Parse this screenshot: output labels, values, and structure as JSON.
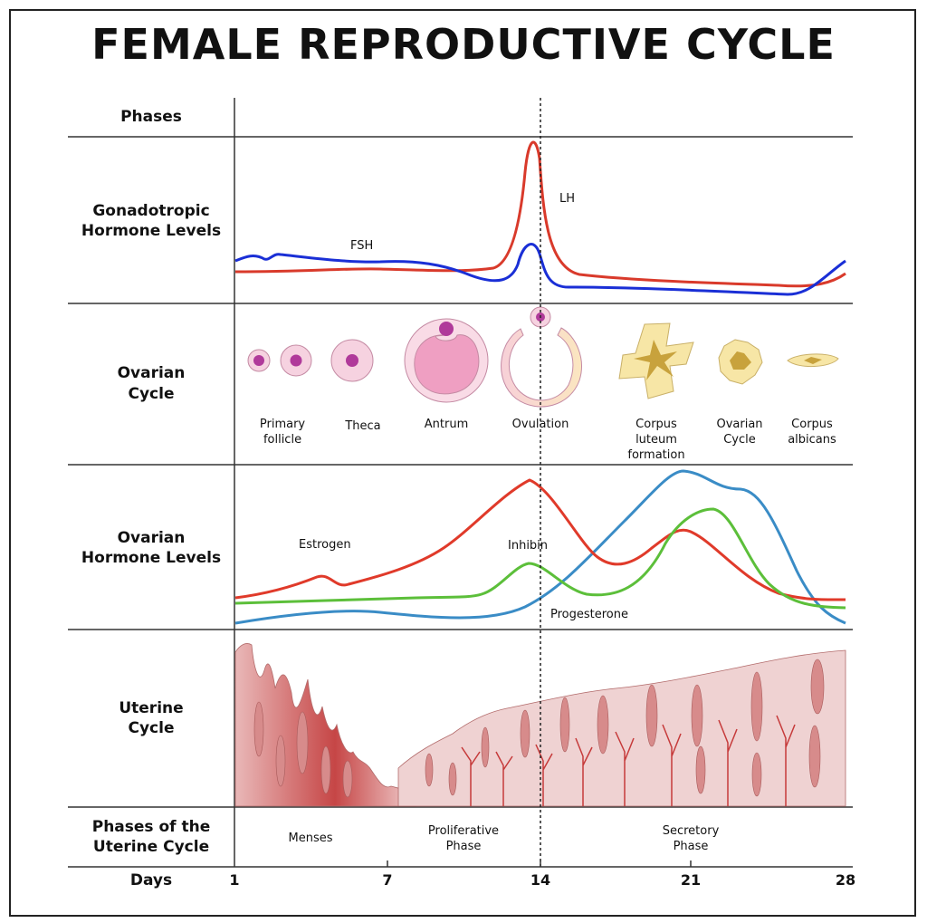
{
  "title": "FEMALE REPRODUCTIVE CYCLE",
  "rows": {
    "phases": "Phases",
    "gonadotropic": [
      "Gonadotropic",
      "Hormone Levels"
    ],
    "ovarian_cycle": [
      "Ovarian",
      "Cycle"
    ],
    "ovarian_hormone": [
      "Ovarian",
      "Hormone Levels"
    ],
    "uterine_cycle": [
      "Uterine",
      "Cycle"
    ],
    "uterine_phases": [
      "Phases of the",
      "Uterine Cycle"
    ],
    "days": "Days"
  },
  "gonadotropic_labels": {
    "fsh": "FSH",
    "lh": "LH"
  },
  "ovarian_stages": [
    {
      "lines": [
        "Primary",
        "follicle"
      ]
    },
    {
      "lines": [
        "Theca"
      ]
    },
    {
      "lines": [
        "Antrum"
      ]
    },
    {
      "lines": [
        "Ovulation"
      ]
    },
    {
      "lines": [
        "Corpus",
        "luteum",
        "formation"
      ]
    },
    {
      "lines": [
        "Ovarian",
        "Cycle"
      ]
    },
    {
      "lines": [
        "Corpus",
        "albicans"
      ]
    }
  ],
  "ovarian_hormone_labels": {
    "estrogen": "Estrogen",
    "inhibin": "Inhibin",
    "progesterone": "Progesterone"
  },
  "uterine_phases": [
    {
      "lines": [
        "Menses"
      ]
    },
    {
      "lines": [
        "Proliferative",
        "Phase"
      ]
    },
    {
      "lines": [
        "Secretory",
        "Phase"
      ]
    }
  ],
  "day_ticks": [
    "1",
    "7",
    "14",
    "21",
    "28"
  ],
  "colors": {
    "fsh": "#1a2fd6",
    "lh": "#d93a2b",
    "estrogen": "#e03a2a",
    "inhibin": "#5cbf3a",
    "progesterone": "#3a8cc6",
    "follicle": "#f6d2e0",
    "oocyte": "#b03a9a",
    "corpus": "#f7e6a6",
    "endometrium": "#ecc6c6"
  }
}
